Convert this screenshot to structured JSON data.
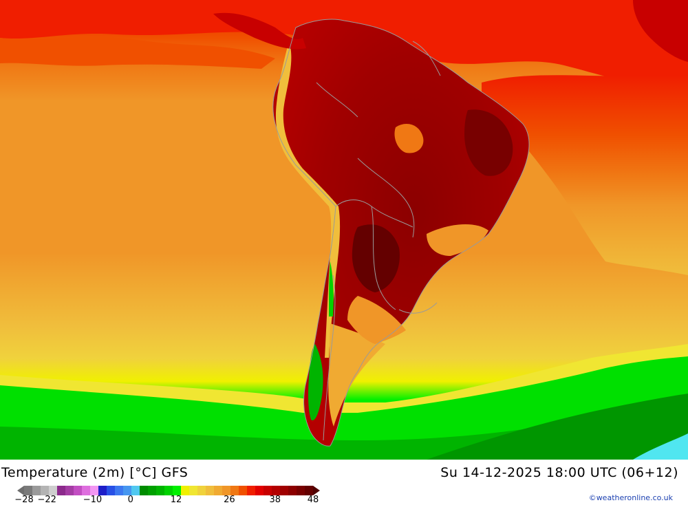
{
  "map": {
    "title": "Temperature (2m) [°C] GFS",
    "datetime": "Su 14-12-2025 18:00 UTC (06+12)",
    "credit": "©weatheronline.co.uk",
    "legend": {
      "tick_labels": [
        "-28",
        "-22",
        "-10",
        "0",
        "12",
        "26",
        "38",
        "48"
      ],
      "colors": [
        "#7a7a7a",
        "#9a9a9a",
        "#b4b4b4",
        "#cecece",
        "#8c2a8c",
        "#a43ca4",
        "#c24ec2",
        "#de6ede",
        "#f296f2",
        "#1e1ec8",
        "#2850e6",
        "#3c78f0",
        "#4696f0",
        "#50c8f0",
        "#008c00",
        "#00a000",
        "#00b400",
        "#00d200",
        "#00f000",
        "#f0f000",
        "#f0e632",
        "#f0d23c",
        "#f0be3c",
        "#f0aa32",
        "#f09628",
        "#f07814",
        "#f05000",
        "#f01e00",
        "#e10000",
        "#c80000",
        "#b40000",
        "#a00000",
        "#8c0000",
        "#780000",
        "#640000"
      ],
      "range": [
        -28,
        48
      ]
    },
    "regions": {
      "continent": "South America",
      "ocean_west": "Pacific Ocean",
      "ocean_east": "Atlantic Ocean"
    }
  }
}
